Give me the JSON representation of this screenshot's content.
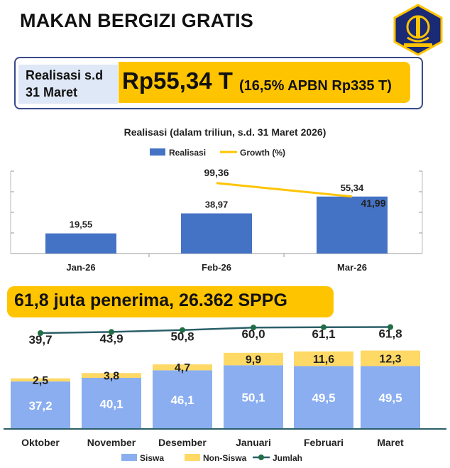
{
  "page_title": "MAKAN BERGIZI GRATIS",
  "realisasi_box": {
    "label_line1": "Realisasi s.d",
    "label_line2": "31 Maret",
    "amount": "Rp55,34 T",
    "share": "(16,5% APBN Rp335 T)"
  },
  "banner": {
    "text": "61,8 juta penerima, 26.362 SPPG"
  },
  "colors": {
    "navy": "#1b2a74",
    "gold": "#ffc400",
    "bar_blue": "#4472c4",
    "siswa": "#8aaef0",
    "nonsiswa": "#ffd966",
    "line_teal": "#2b5f6a"
  },
  "chart_data": [
    {
      "type": "bar",
      "title": "Realisasi (dalam triliun, s.d. 31 Maret 2026)",
      "categories": [
        "Jan-26",
        "Feb-26",
        "Mar-26"
      ],
      "series": [
        {
          "name": "Realisasi",
          "kind": "bar",
          "values": [
            19.55,
            38.97,
            55.34
          ],
          "labels": [
            "19,55",
            "38,97",
            "55,34"
          ]
        },
        {
          "name": "Growth (%)",
          "kind": "line",
          "values": [
            null,
            99.36,
            41.99
          ],
          "labels": [
            "",
            "99,36",
            "41,99"
          ]
        }
      ],
      "ylim": [
        0,
        80
      ],
      "y2lim": [
        -200,
        150
      ],
      "legend": "top-center"
    },
    {
      "type": "bar",
      "stacked": true,
      "categories": [
        "Oktober",
        "November",
        "Desember",
        "Januari",
        "Februari",
        "Maret"
      ],
      "series": [
        {
          "name": "Siswa",
          "values": [
            37.2,
            40.1,
            46.1,
            50.1,
            49.5,
            49.5
          ],
          "labels": [
            "37,2",
            "40,1",
            "46,1",
            "50,1",
            "49,5",
            "49,5"
          ]
        },
        {
          "name": "Non-Siswa",
          "values": [
            2.5,
            3.8,
            4.7,
            9.9,
            11.6,
            12.3
          ],
          "labels": [
            "2,5",
            "3,8",
            "4,7",
            "9,9",
            "11,6",
            "12,3"
          ]
        },
        {
          "name": "Jumlah",
          "kind": "line",
          "values": [
            39.7,
            43.9,
            50.8,
            60.0,
            61.1,
            61.8
          ],
          "labels": [
            "39,7",
            "43,9",
            "50,8",
            "60,0",
            "61,1",
            "61,8"
          ]
        }
      ],
      "legend": "bottom"
    }
  ]
}
